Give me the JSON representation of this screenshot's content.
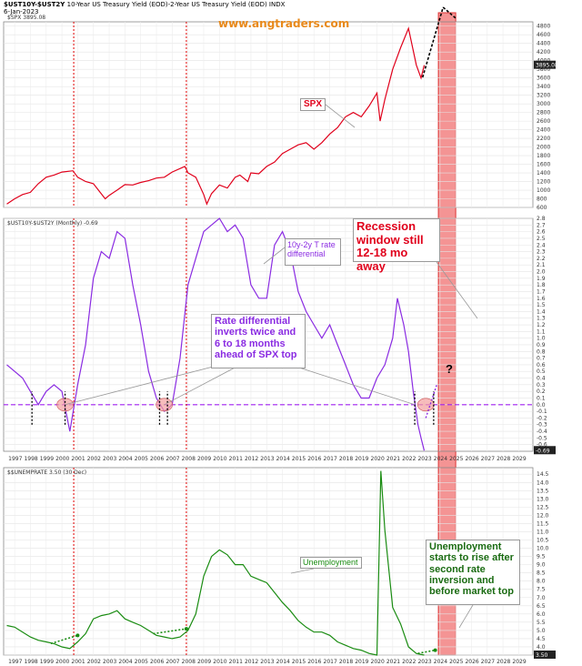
{
  "header": {
    "symbol": "$UST10Y-$UST2Y",
    "description": "10-Year US Treasury Yield (EOD)-2-Year US Treasury Yield (EOD) INDX",
    "date": "6-Jan-2023",
    "website": "www.angtraders.com"
  },
  "colors": {
    "spx": "#e0001b",
    "spread": "#8a2be2",
    "unemployment": "#1a8c12",
    "recession_band": "#f07070",
    "zero_line": "#a020f0",
    "vline": "#e00000"
  },
  "chart_data": [
    {
      "type": "line",
      "panel": "spx",
      "legend": "$SPX 3895.08",
      "last_value_label": "3895.08",
      "series": [
        {
          "name": "SPX",
          "x": [
            1996.5,
            1997,
            1997.5,
            1998,
            1998.5,
            1999,
            1999.5,
            2000,
            2000.7,
            2001,
            2001.5,
            2002,
            2002.75,
            2003,
            2003.5,
            2004,
            2004.5,
            2005,
            2005.5,
            2006,
            2006.5,
            2007,
            2007.8,
            2008,
            2008.5,
            2009,
            2009.2,
            2009.5,
            2010,
            2010.5,
            2011,
            2011.3,
            2011.8,
            2012,
            2012.5,
            2013,
            2013.5,
            2014,
            2014.5,
            2015,
            2015.5,
            2016,
            2016.5,
            2017,
            2017.5,
            2018,
            2018.5,
            2019,
            2019.5,
            2020,
            2020.2,
            2020.5,
            2021,
            2021.5,
            2022,
            2022.5,
            2022.8,
            2023
          ],
          "values": [
            680,
            800,
            900,
            950,
            1150,
            1300,
            1350,
            1420,
            1450,
            1300,
            1200,
            1150,
            800,
            880,
            1000,
            1130,
            1120,
            1180,
            1220,
            1280,
            1300,
            1420,
            1550,
            1400,
            1300,
            900,
            680,
            920,
            1120,
            1050,
            1300,
            1350,
            1200,
            1400,
            1380,
            1550,
            1650,
            1850,
            1950,
            2050,
            2100,
            1950,
            2100,
            2300,
            2450,
            2700,
            2800,
            2700,
            2950,
            3250,
            2600,
            3100,
            3800,
            4300,
            4750,
            3900,
            3600,
            3895
          ]
        }
      ],
      "ylim": [
        600,
        4900
      ],
      "yticks": [
        600,
        800,
        1000,
        1200,
        1400,
        1600,
        1800,
        2000,
        2200,
        2400,
        2600,
        2800,
        3000,
        3200,
        3400,
        3600,
        3800,
        4000,
        4200,
        4400,
        4600,
        4800
      ]
    },
    {
      "type": "line",
      "panel": "spread",
      "legend": "$UST10Y-$UST2Y (Monthly) -0.69",
      "last_value_label": "-0.69",
      "series": [
        {
          "name": "UST10Y-UST2Y",
          "x": [
            1996.5,
            1997,
            1997.5,
            1998,
            1998.5,
            1999,
            1999.5,
            2000,
            2000.5,
            2001,
            2001.5,
            2002,
            2002.5,
            2003,
            2003.5,
            2004,
            2004.5,
            2005,
            2005.5,
            2006,
            2006.5,
            2007,
            2007.5,
            2008,
            2008.5,
            2009,
            2009.5,
            2010,
            2010.5,
            2011,
            2011.5,
            2012,
            2012.5,
            2013,
            2013.5,
            2014,
            2014.5,
            2015,
            2015.5,
            2016,
            2016.5,
            2017,
            2017.5,
            2018,
            2018.5,
            2019,
            2019.5,
            2020,
            2020.5,
            2021,
            2021.3,
            2021.7,
            2022,
            2022.3,
            2022.6,
            2022.8,
            2023
          ],
          "values": [
            0.6,
            0.5,
            0.4,
            0.2,
            0.0,
            0.2,
            0.3,
            0.2,
            -0.4,
            0.3,
            0.9,
            1.9,
            2.3,
            2.2,
            2.6,
            2.5,
            1.8,
            1.2,
            0.5,
            0.1,
            -0.1,
            0.0,
            0.7,
            1.8,
            2.2,
            2.6,
            2.7,
            2.8,
            2.6,
            2.7,
            2.5,
            1.8,
            1.6,
            1.6,
            2.4,
            2.6,
            2.3,
            1.7,
            1.4,
            1.2,
            1.0,
            1.2,
            0.9,
            0.6,
            0.3,
            0.1,
            0.1,
            0.4,
            0.6,
            1.0,
            1.6,
            1.2,
            0.8,
            0.2,
            -0.3,
            -0.5,
            -0.69
          ]
        }
      ],
      "ylim": [
        -0.7,
        2.8
      ],
      "yticks": [
        -0.6,
        -0.5,
        -0.4,
        -0.3,
        -0.2,
        -0.1,
        0.0,
        0.1,
        0.2,
        0.3,
        0.4,
        0.5,
        0.6,
        0.7,
        0.8,
        0.9,
        1.0,
        1.1,
        1.2,
        1.3,
        1.4,
        1.5,
        1.6,
        1.7,
        1.8,
        1.9,
        2.0,
        2.1,
        2.2,
        2.3,
        2.4,
        2.5,
        2.6,
        2.7,
        2.8
      ]
    },
    {
      "type": "line",
      "panel": "unemployment",
      "legend": "$$UNEMPRATE 3.50 (30 Dec)",
      "last_value_label": "3.50",
      "series": [
        {
          "name": "Unemployment",
          "x": [
            1996.5,
            1997,
            1997.5,
            1998,
            1998.5,
            1999,
            1999.5,
            2000,
            2000.5,
            2001,
            2001.5,
            2002,
            2002.5,
            2003,
            2003.5,
            2004,
            2004.5,
            2005,
            2005.5,
            2006,
            2006.5,
            2007,
            2007.5,
            2008,
            2008.5,
            2009,
            2009.5,
            2010,
            2010.5,
            2011,
            2011.5,
            2012,
            2012.5,
            2013,
            2013.5,
            2014,
            2014.5,
            2015,
            2015.5,
            2016,
            2016.5,
            2017,
            2017.5,
            2018,
            2018.5,
            2019,
            2019.5,
            2020,
            2020.25,
            2020.5,
            2021,
            2021.5,
            2022,
            2022.5,
            2023
          ],
          "values": [
            5.3,
            5.2,
            4.9,
            4.6,
            4.4,
            4.3,
            4.2,
            4.0,
            3.9,
            4.3,
            4.8,
            5.7,
            5.9,
            6.0,
            6.2,
            5.7,
            5.5,
            5.3,
            5.0,
            4.7,
            4.6,
            4.5,
            4.6,
            5.0,
            6.0,
            8.3,
            9.5,
            9.9,
            9.6,
            9.0,
            9.0,
            8.3,
            8.1,
            7.9,
            7.3,
            6.7,
            6.2,
            5.6,
            5.2,
            4.9,
            4.9,
            4.7,
            4.3,
            4.1,
            3.9,
            3.8,
            3.6,
            3.5,
            14.7,
            11.1,
            6.4,
            5.4,
            4.0,
            3.6,
            3.5
          ]
        }
      ],
      "ylim": [
        3.5,
        14.9
      ],
      "yticks": [
        3.5,
        4.0,
        4.5,
        5.0,
        5.5,
        6.0,
        6.5,
        7.0,
        7.5,
        8.0,
        8.5,
        9.0,
        9.5,
        10.0,
        10.5,
        11.0,
        11.5,
        12.0,
        12.5,
        13.0,
        13.5,
        14.0,
        14.5
      ]
    }
  ],
  "x_axis": {
    "labels": [
      "1997",
      "1998",
      "1999",
      "2000",
      "2001",
      "2002",
      "2003",
      "2004",
      "2005",
      "2006",
      "2007",
      "2008",
      "2009",
      "2010",
      "2011",
      "2012",
      "2013",
      "2014",
      "2015",
      "2016",
      "2017",
      "2018",
      "2019",
      "2020",
      "2021",
      "2022",
      "2023",
      "2024",
      "2025",
      "2026",
      "2027",
      "2028",
      "2029"
    ]
  },
  "verticals": [
    2000.75,
    2007.9
  ],
  "recession_window": [
    2023.9,
    2025.0
  ],
  "annotations": {
    "spx_label": "SPX",
    "spread_label": "10y-2y T rate differential",
    "rate_diff": "Rate differential inverts twice and 6 to 18 months ahead of SPX top",
    "recession": "Recession window still 12-18 mo away",
    "question": "?",
    "unemp_label": "Unemployment",
    "unemp_note": "Unemployment starts to rise after second rate inversion and before market top"
  }
}
